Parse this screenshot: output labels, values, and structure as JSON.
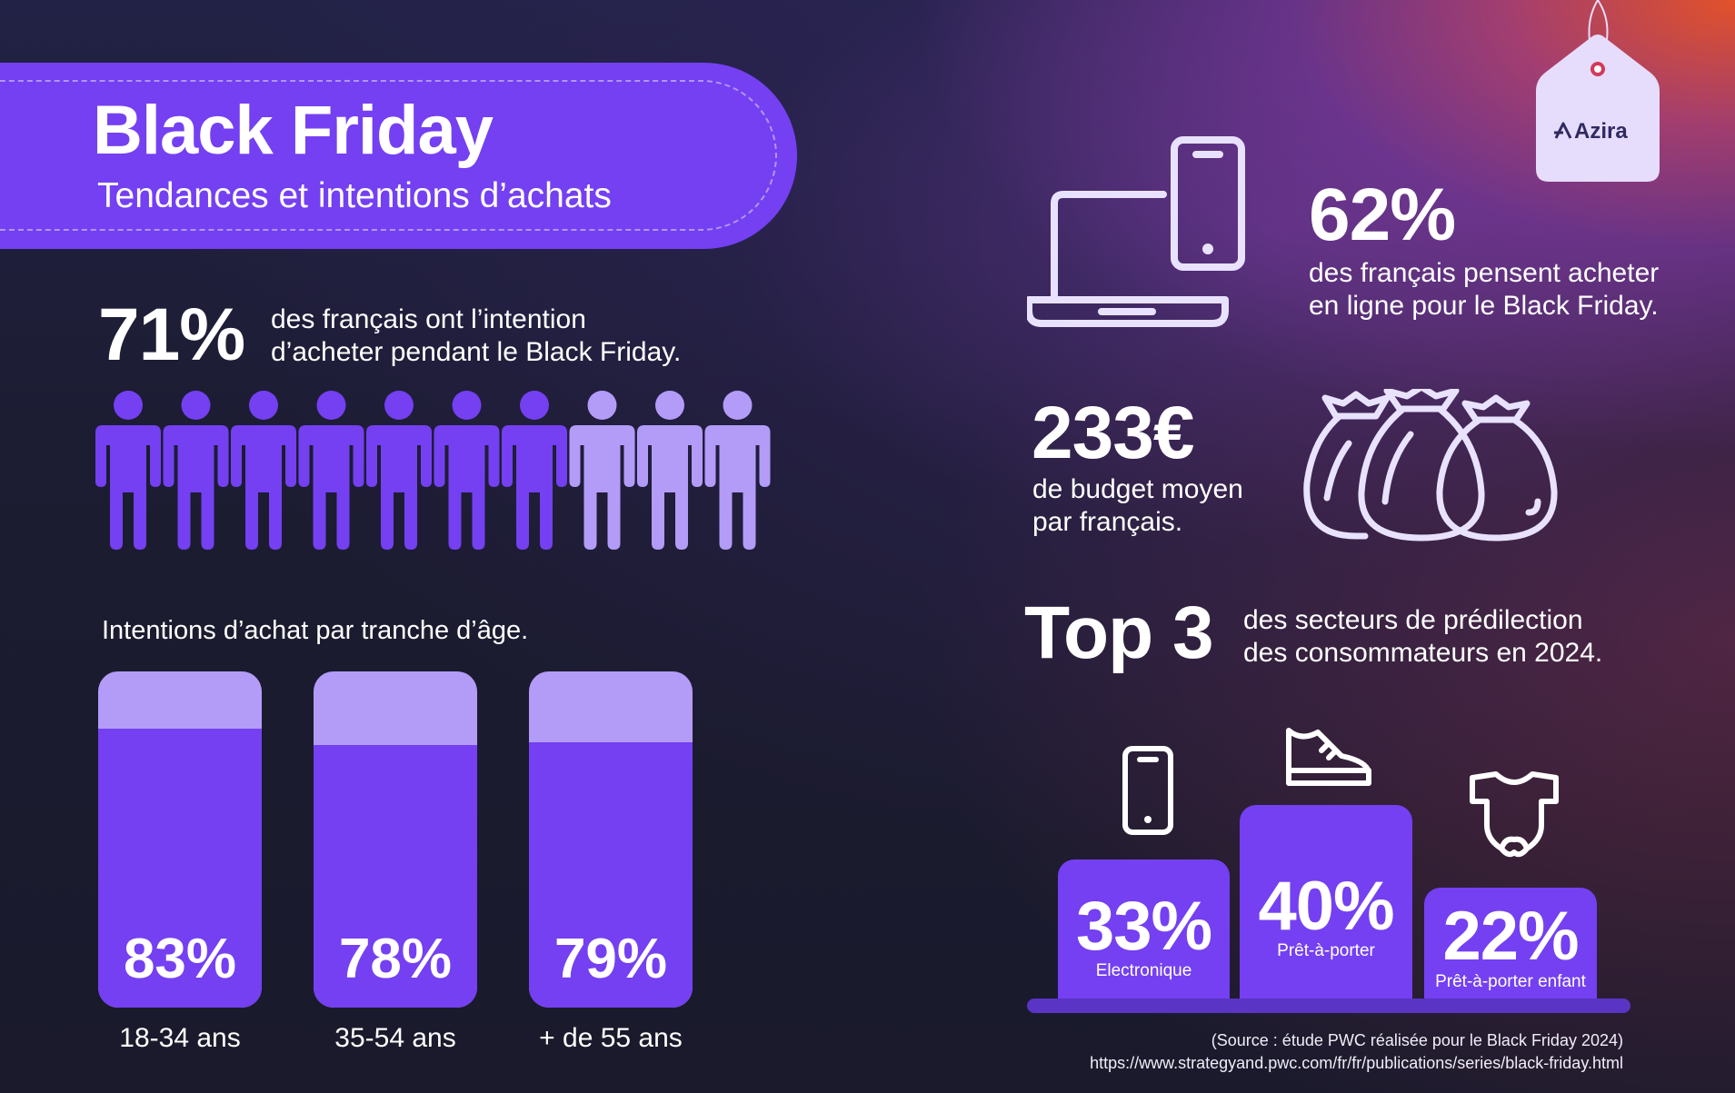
{
  "header": {
    "title": "Black Friday",
    "subtitle": "Tendances et intentions d’achats"
  },
  "intention": {
    "percent": "71%",
    "desc_line1": "des français ont l’intention",
    "desc_line2": "d’acheter pendant le Black Friday.",
    "people_total": 10,
    "people_highlighted": 7
  },
  "age_section": {
    "label": "Intentions d’achat par tranche d’âge.",
    "bars": [
      {
        "value": "83%",
        "fraction": 0.83,
        "category": "18-34 ans"
      },
      {
        "value": "78%",
        "fraction": 0.78,
        "category": "35-54 ans"
      },
      {
        "value": "79%",
        "fraction": 0.79,
        "category": "+ de 55 ans"
      }
    ]
  },
  "online": {
    "percent": "62%",
    "desc_line1": "des français pensent acheter",
    "desc_line2": "en ligne pour le Black Friday."
  },
  "budget": {
    "amount": "233€",
    "desc_line1": "de budget moyen",
    "desc_line2": "par français."
  },
  "top3": {
    "title": "Top 3",
    "desc_line1": "des secteurs de prédilection",
    "desc_line2": "des consommateurs en 2024.",
    "items": [
      {
        "value": "33%",
        "label": "Electronique",
        "icon": "smartphone-icon"
      },
      {
        "value": "40%",
        "label": "Prêt-à-porter",
        "icon": "sneaker-icon"
      },
      {
        "value": "22%",
        "label": "Prêt-à-porter enfant",
        "icon": "baby-bodysuit-icon"
      }
    ]
  },
  "brand": {
    "name": "Azira"
  },
  "source": {
    "line1": "(Source : étude PWC réalisée pour le Black Friday 2024)",
    "line2": "https://www.strategyand.pwc.com/fr/fr/publications/series/black-friday.html"
  },
  "colors": {
    "accent": "#7440f2",
    "accent_light": "#b39cf8",
    "icon_stroke": "#e9e2ff",
    "tag_bg": "#e6dcfb"
  }
}
